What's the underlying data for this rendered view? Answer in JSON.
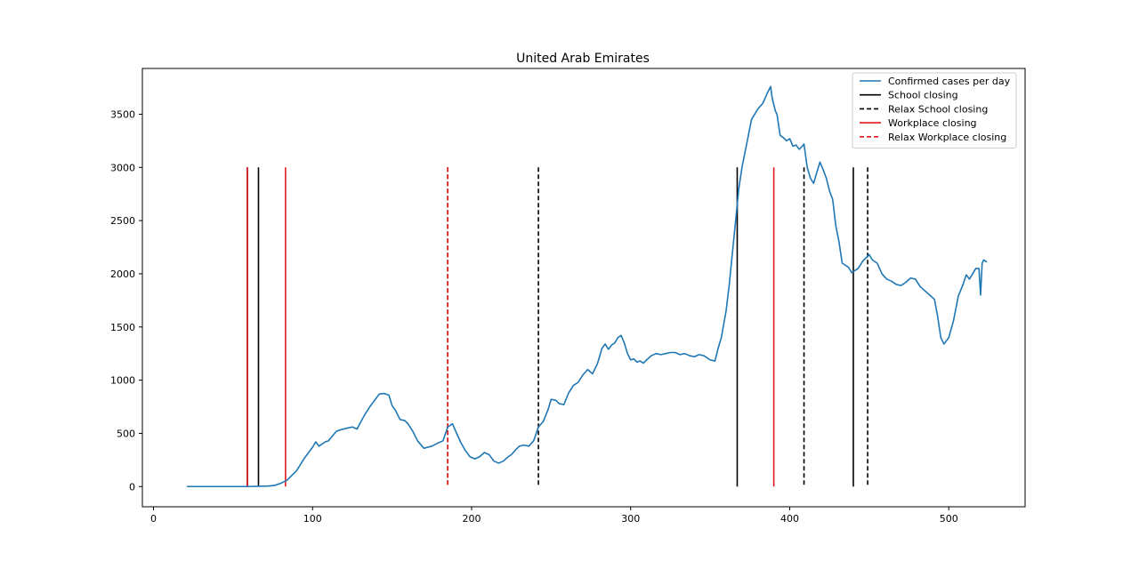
{
  "chart_data": {
    "type": "line",
    "title": "United Arab Emirates",
    "xlabel": "",
    "ylabel": "",
    "xlim": [
      -7,
      548
    ],
    "ylim": [
      -190,
      3930
    ],
    "x_ticks": [
      0,
      100,
      200,
      300,
      400,
      500
    ],
    "y_ticks": [
      0,
      500,
      1000,
      1500,
      2000,
      2500,
      3000,
      3500
    ],
    "grid": false,
    "legend_position": "top-right",
    "series": [
      {
        "name": "Confirmed cases per day",
        "color": "#1f77b4",
        "style": "solid",
        "x": [
          21,
          40,
          60,
          66,
          72,
          76,
          80,
          84,
          90,
          95,
          100,
          102,
          104,
          106,
          108,
          110,
          115,
          118,
          122,
          125,
          128,
          130,
          133,
          136,
          138,
          140,
          142,
          145,
          148,
          150,
          152,
          155,
          158,
          160,
          163,
          166,
          170,
          175,
          179,
          182,
          185,
          188,
          190,
          193,
          196,
          199,
          202,
          205,
          208,
          211,
          214,
          217,
          220,
          223,
          225,
          228,
          230,
          233,
          236,
          239,
          242,
          245,
          248,
          250,
          253,
          255,
          258,
          261,
          264,
          267,
          270,
          273,
          276,
          279,
          282,
          284,
          286,
          288,
          290,
          292,
          294,
          296,
          298,
          300,
          302,
          304,
          306,
          308,
          310,
          313,
          316,
          319,
          322,
          325,
          328,
          331,
          334,
          337,
          340,
          343,
          346,
          350,
          353,
          355,
          357,
          360,
          362,
          364,
          366,
          368,
          370,
          372,
          374,
          376,
          378,
          380,
          383,
          386,
          388,
          389,
          391,
          392,
          394,
          396,
          398,
          400,
          402,
          404,
          406,
          408,
          409,
          411,
          413,
          415,
          417,
          419,
          421,
          423,
          425,
          427,
          429,
          431,
          433,
          435,
          437,
          439,
          441,
          443,
          446,
          448,
          450,
          452,
          455,
          458,
          461,
          464,
          467,
          470,
          473,
          476,
          479,
          482,
          485,
          488,
          491,
          493,
          495,
          497,
          500,
          503,
          506,
          509,
          511,
          513,
          515,
          517,
          519,
          520,
          521,
          522,
          523,
          524
        ],
        "y": [
          0,
          0,
          0,
          3,
          5,
          10,
          30,
          60,
          150,
          270,
          370,
          420,
          380,
          400,
          420,
          430,
          520,
          535,
          550,
          560,
          540,
          600,
          680,
          750,
          790,
          830,
          870,
          875,
          860,
          760,
          720,
          630,
          620,
          590,
          520,
          430,
          360,
          380,
          410,
          430,
          560,
          590,
          520,
          420,
          340,
          280,
          260,
          280,
          320,
          300,
          240,
          220,
          240,
          280,
          300,
          350,
          380,
          390,
          380,
          430,
          560,
          610,
          720,
          820,
          810,
          780,
          770,
          880,
          950,
          980,
          1050,
          1100,
          1060,
          1150,
          1300,
          1340,
          1290,
          1330,
          1350,
          1400,
          1420,
          1350,
          1250,
          1190,
          1200,
          1170,
          1180,
          1160,
          1190,
          1230,
          1250,
          1240,
          1250,
          1260,
          1260,
          1240,
          1250,
          1230,
          1220,
          1240,
          1230,
          1190,
          1180,
          1300,
          1400,
          1650,
          1900,
          2200,
          2500,
          2800,
          3000,
          3150,
          3300,
          3450,
          3500,
          3550,
          3600,
          3700,
          3760,
          3650,
          3530,
          3500,
          3300,
          3280,
          3250,
          3270,
          3200,
          3210,
          3170,
          3200,
          3220,
          3000,
          2900,
          2850,
          2950,
          3050,
          2980,
          2900,
          2780,
          2700,
          2450,
          2300,
          2100,
          2080,
          2060,
          2010,
          2030,
          2050,
          2120,
          2150,
          2180,
          2130,
          2100,
          2000,
          1950,
          1930,
          1900,
          1890,
          1920,
          1960,
          1950,
          1880,
          1840,
          1800,
          1760,
          1600,
          1400,
          1340,
          1400,
          1560,
          1790,
          1900,
          1990,
          1950,
          2000,
          2050,
          2050,
          1800,
          2100,
          2130,
          2120,
          2110
        ]
      },
      {
        "name": "School closing",
        "color": "#000000",
        "style": "solid",
        "lines_at": [
          59,
          66,
          367,
          440
        ]
      },
      {
        "name": "Relax School closing",
        "color": "#000000",
        "style": "dashed",
        "lines_at": [
          185,
          242,
          409,
          449
        ]
      },
      {
        "name": "Workplace closing",
        "color": "#e41a1c",
        "style": "solid",
        "lines_at": [
          59,
          83,
          390
        ]
      },
      {
        "name": "Relax Workplace closing",
        "color": "#e41a1c",
        "style": "dashed",
        "lines_at": [
          185
        ]
      }
    ],
    "vline_top": 3000,
    "vline_bottom": 0
  }
}
